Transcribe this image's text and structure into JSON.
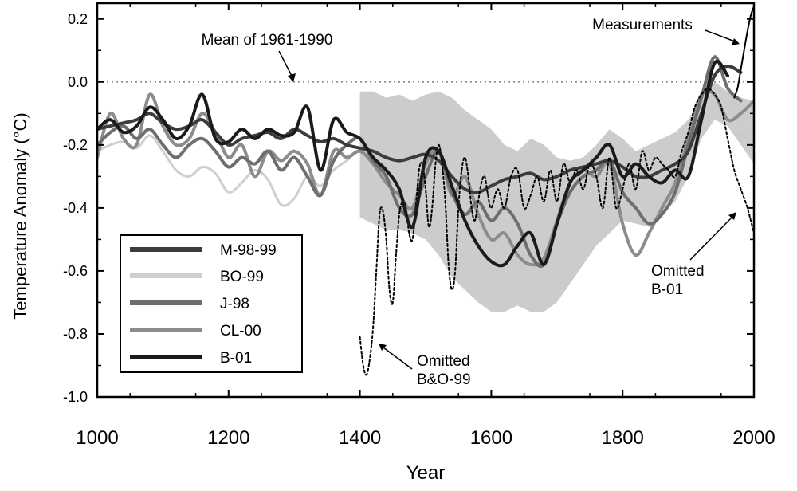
{
  "chart_data": {
    "type": "line",
    "xlabel": "Year",
    "ylabel": "Temperature Anomaly (°C)",
    "xlim": [
      1000,
      2000
    ],
    "ylim": [
      -1.0,
      0.25
    ],
    "x_ticks": [
      "1000",
      "1200",
      "1400",
      "1600",
      "1800",
      "2000"
    ],
    "y_ticks": [
      "0.2",
      "0.0",
      "-0.2",
      "-0.4",
      "-0.6",
      "-0.8",
      "-1.0"
    ],
    "grid": false,
    "legend_position": "lower-left",
    "zero_line": {
      "y": 0.0,
      "style": "dotted"
    },
    "annotations": [
      {
        "id": "mean",
        "text": "Mean of 1961-1990",
        "point": [
          1305,
          0.0
        ]
      },
      {
        "id": "measurements",
        "text": "Measurements",
        "point": [
          1993,
          0.2
        ]
      },
      {
        "id": "omitted_bo",
        "lines": [
          "Omitted",
          "B&O-99"
        ],
        "point": [
          1425,
          -0.83
        ]
      },
      {
        "id": "omitted_b01",
        "lines": [
          "Omitted",
          "B-01"
        ],
        "point": [
          1958,
          -0.41
        ]
      }
    ],
    "uncertainty_band": {
      "name": "",
      "color": "#cccccc",
      "x": [
        1400,
        1420,
        1440,
        1460,
        1480,
        1500,
        1520,
        1540,
        1560,
        1580,
        1600,
        1620,
        1640,
        1660,
        1680,
        1700,
        1720,
        1740,
        1760,
        1780,
        1800,
        1820,
        1840,
        1860,
        1880,
        1900,
        1920,
        1940,
        1960,
        1980,
        2000
      ],
      "upper": [
        -0.03,
        -0.03,
        -0.05,
        -0.04,
        -0.06,
        -0.04,
        -0.03,
        -0.05,
        -0.09,
        -0.12,
        -0.15,
        -0.2,
        -0.22,
        -0.18,
        -0.2,
        -0.24,
        -0.25,
        -0.24,
        -0.2,
        -0.15,
        -0.18,
        -0.22,
        -0.2,
        -0.18,
        -0.16,
        -0.12,
        -0.05,
        0.0,
        -0.03,
        -0.05,
        -0.06
      ],
      "lower": [
        -0.43,
        -0.45,
        -0.47,
        -0.47,
        -0.48,
        -0.5,
        -0.55,
        -0.62,
        -0.66,
        -0.7,
        -0.73,
        -0.73,
        -0.71,
        -0.73,
        -0.73,
        -0.7,
        -0.64,
        -0.58,
        -0.52,
        -0.48,
        -0.44,
        -0.45,
        -0.46,
        -0.42,
        -0.38,
        -0.3,
        -0.18,
        -0.12,
        -0.14,
        -0.2,
        -0.26
      ]
    },
    "series": [
      {
        "name": "M-98-99",
        "color": "#3c3c3c",
        "width": 4,
        "x": [
          1000,
          1020,
          1040,
          1060,
          1080,
          1100,
          1120,
          1140,
          1160,
          1180,
          1200,
          1220,
          1240,
          1260,
          1280,
          1300,
          1320,
          1340,
          1360,
          1380,
          1400,
          1420,
          1440,
          1460,
          1480,
          1500,
          1520,
          1540,
          1560,
          1580,
          1600,
          1620,
          1640,
          1660,
          1680,
          1700,
          1720,
          1740,
          1760,
          1780,
          1800,
          1820,
          1840,
          1860,
          1880,
          1900,
          1920,
          1940,
          1960,
          1980
        ],
        "y": [
          -0.15,
          -0.14,
          -0.13,
          -0.12,
          -0.1,
          -0.13,
          -0.15,
          -0.14,
          -0.12,
          -0.16,
          -0.2,
          -0.18,
          -0.17,
          -0.16,
          -0.18,
          -0.15,
          -0.17,
          -0.19,
          -0.18,
          -0.2,
          -0.21,
          -0.22,
          -0.24,
          -0.25,
          -0.24,
          -0.23,
          -0.25,
          -0.3,
          -0.34,
          -0.35,
          -0.33,
          -0.31,
          -0.3,
          -0.29,
          -0.31,
          -0.3,
          -0.28,
          -0.27,
          -0.26,
          -0.25,
          -0.27,
          -0.3,
          -0.3,
          -0.28,
          -0.26,
          -0.22,
          -0.1,
          0.02,
          0.05,
          0.03
        ]
      },
      {
        "name": "BO-99",
        "color": "#cfcfcf",
        "width": 3,
        "x": [
          1000,
          1020,
          1040,
          1060,
          1080,
          1100,
          1120,
          1140,
          1160,
          1180,
          1200,
          1220,
          1240,
          1260,
          1280,
          1300,
          1320,
          1340,
          1360,
          1380,
          1400,
          1420,
          1440,
          1460,
          1480,
          1500,
          1520,
          1540,
          1560,
          1580,
          1600,
          1620,
          1640,
          1660,
          1680,
          1700,
          1720,
          1740,
          1760,
          1780,
          1800,
          1820,
          1840,
          1860,
          1880,
          1900,
          1920,
          1940,
          1960,
          1980,
          2000
        ],
        "y": [
          -0.22,
          -0.2,
          -0.19,
          -0.21,
          -0.17,
          -0.22,
          -0.28,
          -0.3,
          -0.27,
          -0.29,
          -0.35,
          -0.32,
          -0.28,
          -0.31,
          -0.39,
          -0.37,
          -0.3,
          -0.33,
          -0.28,
          -0.25,
          -0.22,
          -0.28,
          -0.32,
          -0.35,
          -0.38,
          -0.34,
          -0.31,
          -0.36,
          -0.4,
          -0.42,
          -0.4,
          -0.36,
          -0.33,
          -0.31,
          -0.33,
          -0.35,
          -0.31,
          -0.28,
          -0.25,
          -0.22,
          -0.26,
          -0.3,
          -0.32,
          -0.28,
          -0.22,
          -0.14,
          -0.05,
          -0.03,
          -0.1,
          -0.15,
          -0.12
        ]
      },
      {
        "name": "J-98",
        "color": "#6e6e6e",
        "width": 4,
        "x": [
          1000,
          1020,
          1040,
          1060,
          1080,
          1100,
          1120,
          1140,
          1160,
          1180,
          1200,
          1220,
          1240,
          1260,
          1280,
          1300,
          1320,
          1340,
          1360,
          1380,
          1400,
          1420,
          1440,
          1460,
          1480,
          1500,
          1520,
          1540,
          1560,
          1580,
          1600,
          1620,
          1640,
          1660,
          1680,
          1700,
          1720,
          1740,
          1760,
          1780,
          1800,
          1820,
          1840,
          1860,
          1880,
          1900,
          1920,
          1940,
          1960,
          1980
        ],
        "y": [
          -0.2,
          -0.16,
          -0.14,
          -0.18,
          -0.15,
          -0.2,
          -0.24,
          -0.2,
          -0.18,
          -0.22,
          -0.27,
          -0.24,
          -0.26,
          -0.22,
          -0.28,
          -0.24,
          -0.3,
          -0.36,
          -0.25,
          -0.2,
          -0.18,
          -0.25,
          -0.3,
          -0.4,
          -0.42,
          -0.3,
          -0.22,
          -0.35,
          -0.42,
          -0.38,
          -0.44,
          -0.4,
          -0.45,
          -0.55,
          -0.58,
          -0.45,
          -0.35,
          -0.3,
          -0.28,
          -0.25,
          -0.35,
          -0.4,
          -0.45,
          -0.42,
          -0.35,
          -0.2,
          -0.05,
          0.08,
          -0.02,
          -0.06
        ]
      },
      {
        "name": "CL-00",
        "color": "#8c8c8c",
        "width": 4,
        "x": [
          1000,
          1020,
          1040,
          1060,
          1080,
          1100,
          1120,
          1140,
          1160,
          1180,
          1200,
          1220,
          1240,
          1260,
          1280,
          1300,
          1320,
          1340,
          1360,
          1380,
          1400,
          1420,
          1440,
          1460,
          1480,
          1500,
          1520,
          1540,
          1560,
          1580,
          1600,
          1620,
          1640,
          1660,
          1680,
          1700,
          1720,
          1740,
          1760,
          1780,
          1800,
          1820,
          1840,
          1860,
          1880,
          1900,
          1920,
          1940,
          1960,
          1980,
          2000
        ],
        "y": [
          -0.24,
          -0.1,
          -0.18,
          -0.2,
          -0.04,
          -0.14,
          -0.2,
          -0.18,
          -0.1,
          -0.16,
          -0.24,
          -0.2,
          -0.3,
          -0.22,
          -0.25,
          -0.22,
          -0.26,
          -0.36,
          -0.22,
          -0.24,
          -0.22,
          -0.26,
          -0.32,
          -0.36,
          -0.4,
          -0.26,
          -0.22,
          -0.36,
          -0.3,
          -0.42,
          -0.5,
          -0.48,
          -0.55,
          -0.58,
          -0.56,
          -0.44,
          -0.32,
          -0.28,
          -0.3,
          -0.26,
          -0.45,
          -0.55,
          -0.48,
          -0.4,
          -0.32,
          -0.18,
          -0.04,
          -0.04,
          -0.12,
          -0.1,
          -0.06
        ]
      },
      {
        "name": "B-01",
        "color": "#1a1a1a",
        "width": 4,
        "x": [
          1000,
          1020,
          1040,
          1060,
          1080,
          1100,
          1120,
          1140,
          1160,
          1180,
          1200,
          1220,
          1240,
          1260,
          1280,
          1300,
          1320,
          1340,
          1360,
          1380,
          1400,
          1420,
          1440,
          1460,
          1480,
          1500,
          1520,
          1540,
          1560,
          1580,
          1600,
          1620,
          1640,
          1660,
          1680,
          1700,
          1720,
          1740,
          1760,
          1780,
          1800,
          1820,
          1840,
          1860,
          1880,
          1900,
          1920,
          1940,
          1960
        ],
        "y": [
          -0.15,
          -0.12,
          -0.16,
          -0.14,
          -0.08,
          -0.12,
          -0.18,
          -0.14,
          -0.04,
          -0.18,
          -0.19,
          -0.15,
          -0.18,
          -0.15,
          -0.17,
          -0.16,
          -0.08,
          -0.28,
          -0.12,
          -0.16,
          -0.18,
          -0.24,
          -0.28,
          -0.34,
          -0.46,
          -0.24,
          -0.22,
          -0.33,
          -0.44,
          -0.52,
          -0.57,
          -0.58,
          -0.52,
          -0.48,
          -0.58,
          -0.45,
          -0.32,
          -0.28,
          -0.24,
          -0.2,
          -0.3,
          -0.26,
          -0.3,
          -0.32,
          -0.28,
          -0.3,
          -0.12,
          0.06,
          0.02
        ]
      },
      {
        "name": "Measurements",
        "color": "#000000",
        "width": 2,
        "x": [
          1970,
          1975,
          1980,
          1985,
          1990,
          1995,
          2000
        ],
        "y": [
          -0.05,
          -0.02,
          0.04,
          0.1,
          0.16,
          0.21,
          0.24
        ]
      },
      {
        "name": "Omitted B&O-99",
        "color": "#000000",
        "width": 2,
        "dash": "3,3",
        "x": [
          1400,
          1405,
          1410,
          1415,
          1420,
          1425,
          1430,
          1435,
          1440,
          1445,
          1450,
          1455,
          1460,
          1465,
          1470,
          1475,
          1480,
          1485,
          1490,
          1495,
          1500,
          1505,
          1510,
          1515,
          1520,
          1525,
          1530,
          1535,
          1540,
          1545,
          1550,
          1555,
          1560,
          1565,
          1570,
          1575,
          1580,
          1585,
          1590,
          1595,
          1600,
          1610,
          1620,
          1630,
          1640,
          1650,
          1660,
          1670,
          1680,
          1690,
          1700,
          1710,
          1720,
          1730,
          1740,
          1750,
          1760,
          1770,
          1780,
          1790,
          1800,
          1810,
          1820,
          1830,
          1840,
          1850,
          1860,
          1870,
          1880,
          1890,
          1900,
          1910,
          1920,
          1930,
          1940,
          1950,
          1960,
          1970,
          1980,
          1990,
          2000
        ],
        "y": [
          -0.81,
          -0.9,
          -0.93,
          -0.88,
          -0.78,
          -0.6,
          -0.42,
          -0.41,
          -0.5,
          -0.66,
          -0.7,
          -0.55,
          -0.42,
          -0.38,
          -0.4,
          -0.48,
          -0.5,
          -0.4,
          -0.28,
          -0.26,
          -0.34,
          -0.46,
          -0.4,
          -0.26,
          -0.2,
          -0.26,
          -0.38,
          -0.58,
          -0.66,
          -0.6,
          -0.4,
          -0.28,
          -0.24,
          -0.3,
          -0.4,
          -0.44,
          -0.38,
          -0.32,
          -0.3,
          -0.36,
          -0.4,
          -0.34,
          -0.4,
          -0.3,
          -0.28,
          -0.4,
          -0.36,
          -0.3,
          -0.38,
          -0.28,
          -0.38,
          -0.26,
          -0.32,
          -0.28,
          -0.34,
          -0.26,
          -0.3,
          -0.4,
          -0.24,
          -0.4,
          -0.34,
          -0.26,
          -0.34,
          -0.22,
          -0.28,
          -0.24,
          -0.26,
          -0.28,
          -0.3,
          -0.22,
          -0.16,
          -0.08,
          -0.04,
          -0.02,
          -0.04,
          -0.08,
          -0.18,
          -0.28,
          -0.34,
          -0.4,
          -0.48
        ]
      }
    ]
  }
}
